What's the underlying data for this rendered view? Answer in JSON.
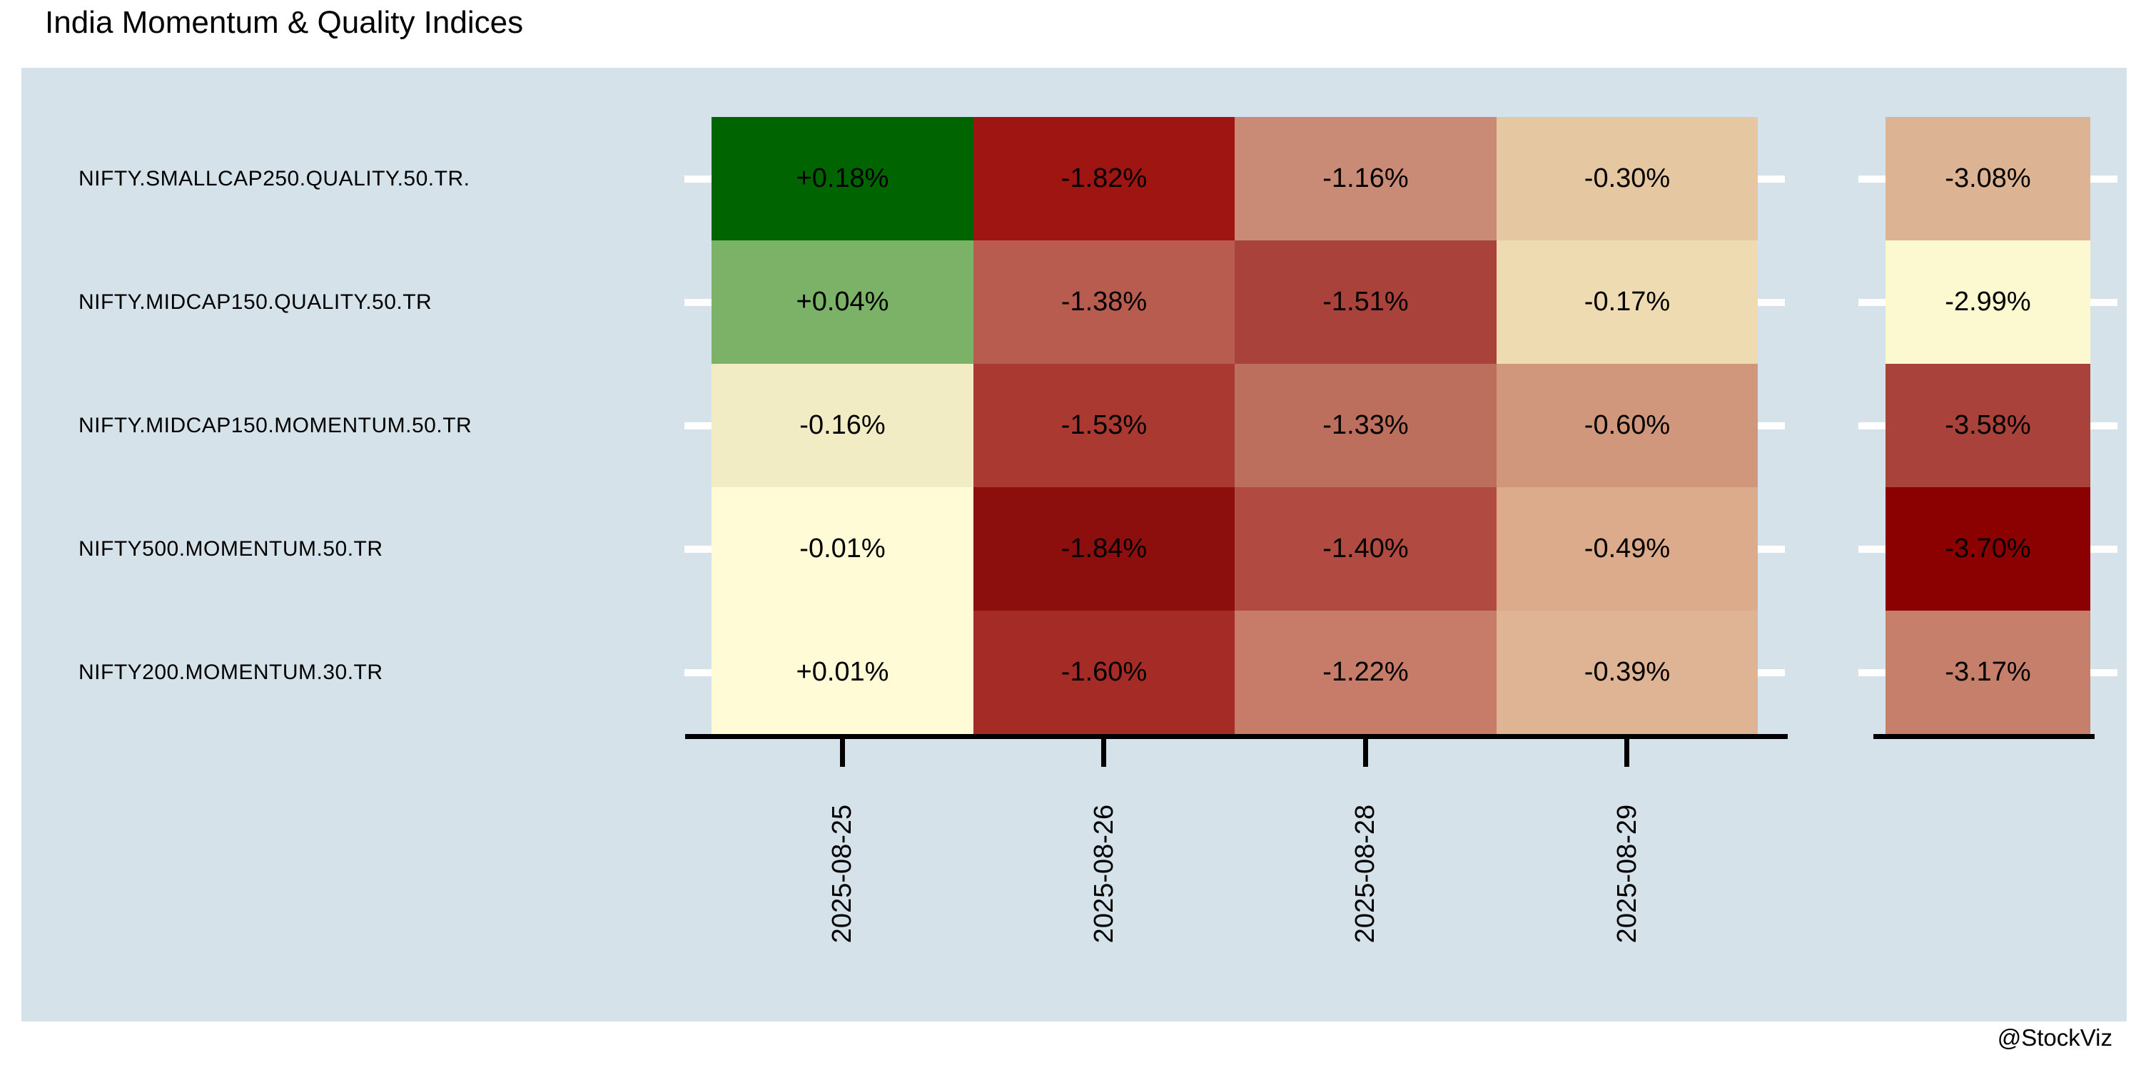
{
  "chart_data": {
    "type": "heatmap",
    "title": "India Momentum & Quality Indices",
    "watermark": "@StockViz",
    "columns": [
      "2025-08-25",
      "2025-08-26",
      "2025-08-28",
      "2025-08-29"
    ],
    "legend_position": "none",
    "grid": false,
    "colors": {
      "page_bg": "#ffffff",
      "panel_bg": "#d5e2ea",
      "axis": "#000000",
      "tick_mark": "#ffffff",
      "text": "#000000"
    },
    "rows": [
      {
        "name": "NIFTY.SMALLCAP250.QUALITY.50.TR.",
        "cells": [
          {
            "label": "+0.18%",
            "value": 0.18,
            "color": "#006400"
          },
          {
            "label": "-1.82%",
            "value": -1.82,
            "color": "#9e1511"
          },
          {
            "label": "-1.16%",
            "value": -1.16,
            "color": "#c98a76"
          },
          {
            "label": "-0.30%",
            "value": -0.3,
            "color": "#e5c7a2"
          }
        ],
        "total": {
          "label": "-3.08%",
          "value": -3.08,
          "color": "#dcb494"
        }
      },
      {
        "name": "NIFTY.MIDCAP150.QUALITY.50.TR",
        "cells": [
          {
            "label": "+0.04%",
            "value": 0.04,
            "color": "#7cb168"
          },
          {
            "label": "-1.38%",
            "value": -1.38,
            "color": "#b85c50"
          },
          {
            "label": "-1.51%",
            "value": -1.51,
            "color": "#a8423a"
          },
          {
            "label": "-0.17%",
            "value": -0.17,
            "color": "#eedbb2"
          }
        ],
        "total": {
          "label": "-2.99%",
          "value": -2.99,
          "color": "#fcf8d0"
        }
      },
      {
        "name": "NIFTY.MIDCAP150.MOMENTUM.50.TR",
        "cells": [
          {
            "label": "-0.16%",
            "value": -0.16,
            "color": "#f2ecc5"
          },
          {
            "label": "-1.53%",
            "value": -1.53,
            "color": "#a93931"
          },
          {
            "label": "-1.33%",
            "value": -1.33,
            "color": "#bd6f5e"
          },
          {
            "label": "-0.60%",
            "value": -0.6,
            "color": "#d0977c"
          }
        ],
        "total": {
          "label": "-3.58%",
          "value": -3.58,
          "color": "#a8423a"
        }
      },
      {
        "name": "NIFTY500.MOMENTUM.50.TR",
        "cells": [
          {
            "label": "-0.01%",
            "value": -0.01,
            "color": "#fefbd6"
          },
          {
            "label": "-1.84%",
            "value": -1.84,
            "color": "#8d0f0d"
          },
          {
            "label": "-1.40%",
            "value": -1.4,
            "color": "#b14b42"
          },
          {
            "label": "-0.49%",
            "value": -0.49,
            "color": "#dcab8c"
          }
        ],
        "total": {
          "label": "-3.70%",
          "value": -3.7,
          "color": "#8b0000"
        }
      },
      {
        "name": "NIFTY200.MOMENTUM.30.TR",
        "cells": [
          {
            "label": "+0.01%",
            "value": 0.01,
            "color": "#fefbd6"
          },
          {
            "label": "-1.60%",
            "value": -1.6,
            "color": "#a52c26"
          },
          {
            "label": "-1.22%",
            "value": -1.22,
            "color": "#c67c68"
          },
          {
            "label": "-0.39%",
            "value": -0.39,
            "color": "#dfb494"
          }
        ],
        "total": {
          "label": "-3.17%",
          "value": -3.17,
          "color": "#c67f6b"
        }
      }
    ]
  }
}
